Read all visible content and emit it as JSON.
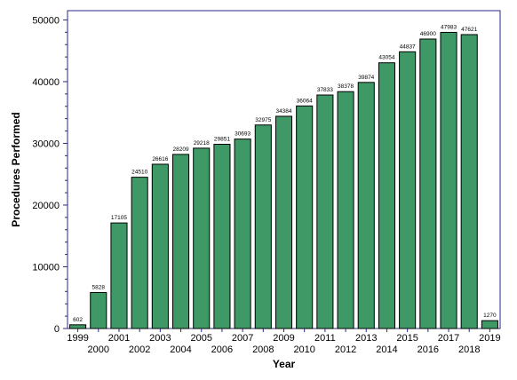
{
  "chart_data": {
    "type": "bar",
    "title": "",
    "xlabel": "Year",
    "ylabel": "Procedures Performed",
    "categories": [
      "1999",
      "2000",
      "2001",
      "2002",
      "2003",
      "2004",
      "2005",
      "2006",
      "2007",
      "2008",
      "2009",
      "2010",
      "2011",
      "2012",
      "2013",
      "2014",
      "2015",
      "2016",
      "2017",
      "2018",
      "2019"
    ],
    "values": [
      602,
      5828,
      17105,
      24510,
      26616,
      28209,
      29218,
      29851,
      30693,
      32975,
      34384,
      36064,
      37833,
      38378,
      39874,
      43054,
      44837,
      46900,
      47983,
      47621,
      1270
    ],
    "ylim": [
      0,
      51500
    ],
    "yticks": [
      0,
      10000,
      20000,
      30000,
      40000,
      50000
    ],
    "grid": false,
    "legend": "none",
    "colors": {
      "bar_fill": "#3f9967",
      "bar_stroke": "#000000",
      "axis": "#2a2a8a"
    }
  }
}
